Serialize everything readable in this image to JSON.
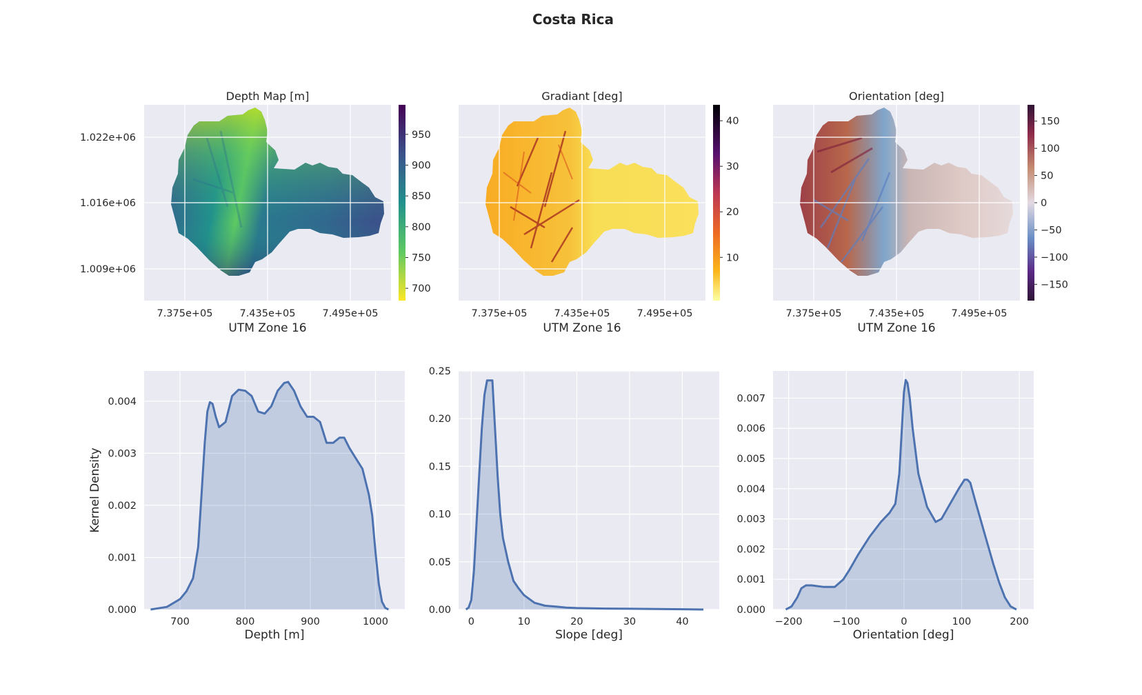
{
  "title": "Costa Rica",
  "colors": {
    "axes_bg": "#eaeaf2",
    "kde_line": "#4c72b0",
    "kde_fill": "#4c72b0",
    "text": "#262626"
  },
  "maps": [
    {
      "title": "Depth Map [m]",
      "xlabel": "UTM Zone 16",
      "xticks": [
        "7.375e+05",
        "7.435e+05",
        "7.495e+05"
      ],
      "yticks": [
        "1.022e+06",
        "1.016e+06",
        "1.009e+06"
      ],
      "cmap": "viridis_r",
      "colorbar_range": [
        680,
        998
      ],
      "colorbar_ticks": [
        950,
        900,
        850,
        800,
        750,
        700
      ]
    },
    {
      "title": "Gradiant [deg]",
      "xlabel": "UTM Zone 16",
      "xticks": [
        "7.375e+05",
        "7.435e+05",
        "7.495e+05"
      ],
      "yticks": [],
      "cmap": "inferno_r",
      "colorbar_range": [
        0.5,
        43.5
      ],
      "colorbar_ticks": [
        40,
        30,
        20,
        10
      ]
    },
    {
      "title": "Orientation [deg]",
      "xlabel": "UTM Zone 16",
      "xticks": [
        "7.375e+05",
        "7.435e+05",
        "7.495e+05"
      ],
      "yticks": [],
      "cmap": "twilight_shifted",
      "colorbar_range": [
        -180,
        180
      ],
      "colorbar_ticks": [
        "150",
        "100",
        "50",
        "0",
        "−50",
        "−100",
        "−150"
      ]
    }
  ],
  "chart_data": [
    {
      "type": "area",
      "title": "",
      "xlabel": "Depth [m]",
      "ylabel": "Kernel Density",
      "xlim": [
        645,
        1045
      ],
      "ylim": [
        0,
        0.00458
      ],
      "xticks": [
        700,
        800,
        900,
        1000
      ],
      "yticks": [
        0.0,
        0.001,
        0.002,
        0.003,
        0.004
      ],
      "ytick_labels": [
        "0.000",
        "0.001",
        "0.002",
        "0.003",
        "0.004"
      ],
      "x": [
        655,
        680,
        700,
        710,
        720,
        728,
        733,
        738,
        742,
        746,
        750,
        755,
        760,
        770,
        780,
        790,
        800,
        810,
        820,
        830,
        840,
        850,
        860,
        866,
        875,
        885,
        895,
        905,
        915,
        925,
        935,
        945,
        952,
        960,
        970,
        980,
        990,
        995,
        1000,
        1005,
        1010,
        1015,
        1020
      ],
      "y": [
        0.0,
        5e-05,
        0.0002,
        0.00035,
        0.0006,
        0.0012,
        0.0022,
        0.0032,
        0.0038,
        0.00398,
        0.00395,
        0.0037,
        0.0035,
        0.0036,
        0.0041,
        0.00422,
        0.0042,
        0.0041,
        0.0038,
        0.00376,
        0.0039,
        0.0042,
        0.00435,
        0.00437,
        0.0042,
        0.0039,
        0.0037,
        0.0037,
        0.0036,
        0.0032,
        0.0032,
        0.0033,
        0.0033,
        0.0031,
        0.0029,
        0.0027,
        0.0022,
        0.0018,
        0.0011,
        0.0005,
        0.00015,
        3e-05,
        0.0
      ]
    },
    {
      "type": "area",
      "title": "",
      "xlabel": "Slope [deg]",
      "ylabel": "",
      "xlim": [
        -2.4,
        47
      ],
      "ylim": [
        0,
        0.25
      ],
      "xticks": [
        0,
        10,
        20,
        30,
        40
      ],
      "yticks": [
        0.0,
        0.05,
        0.1,
        0.15,
        0.2,
        0.25
      ],
      "ytick_labels": [
        "0.00",
        "0.05",
        "0.10",
        "0.15",
        "0.20",
        "0.25"
      ],
      "x": [
        -1,
        -0.5,
        0,
        0.5,
        1,
        1.5,
        2,
        2.5,
        3,
        4,
        4.5,
        5,
        5.5,
        6,
        7,
        8,
        9,
        10,
        12,
        14,
        16,
        18,
        20,
        25,
        30,
        35,
        40,
        44
      ],
      "y": [
        0.0,
        0.002,
        0.01,
        0.04,
        0.09,
        0.14,
        0.19,
        0.225,
        0.24,
        0.24,
        0.19,
        0.14,
        0.1,
        0.075,
        0.05,
        0.03,
        0.022,
        0.015,
        0.007,
        0.004,
        0.003,
        0.002,
        0.0015,
        0.001,
        0.0008,
        0.0005,
        0.0003,
        0.0
      ]
    },
    {
      "type": "area",
      "title": "",
      "xlabel": "Orientation [deg]",
      "ylabel": "",
      "xlim": [
        -227,
        225
      ],
      "ylim": [
        0,
        0.0079
      ],
      "xticks": [
        -200,
        -100,
        0,
        100,
        200
      ],
      "xtick_labels": [
        "−200",
        "−100",
        "0",
        "100",
        "200"
      ],
      "yticks": [
        0.0,
        0.001,
        0.002,
        0.003,
        0.004,
        0.005,
        0.006,
        0.007
      ],
      "ytick_labels": [
        "0.000",
        "0.001",
        "0.002",
        "0.003",
        "0.004",
        "0.005",
        "0.006",
        "0.007"
      ],
      "x": [
        -205,
        -195,
        -185,
        -178,
        -170,
        -160,
        -140,
        -120,
        -105,
        -95,
        -80,
        -60,
        -40,
        -25,
        -15,
        -8,
        -3,
        0,
        3,
        6,
        10,
        15,
        25,
        40,
        55,
        65,
        80,
        95,
        105,
        110,
        115,
        125,
        140,
        155,
        165,
        175,
        185,
        195
      ],
      "y": [
        0.0,
        0.0001,
        0.0004,
        0.0007,
        0.0008,
        0.0008,
        0.00075,
        0.00075,
        0.001,
        0.0013,
        0.0018,
        0.0024,
        0.0029,
        0.0032,
        0.0035,
        0.0045,
        0.0062,
        0.0072,
        0.0076,
        0.0075,
        0.007,
        0.006,
        0.0045,
        0.0034,
        0.0029,
        0.003,
        0.0035,
        0.004,
        0.0043,
        0.0043,
        0.0042,
        0.0035,
        0.0025,
        0.0015,
        0.0009,
        0.0004,
        0.0001,
        0.0
      ]
    }
  ]
}
